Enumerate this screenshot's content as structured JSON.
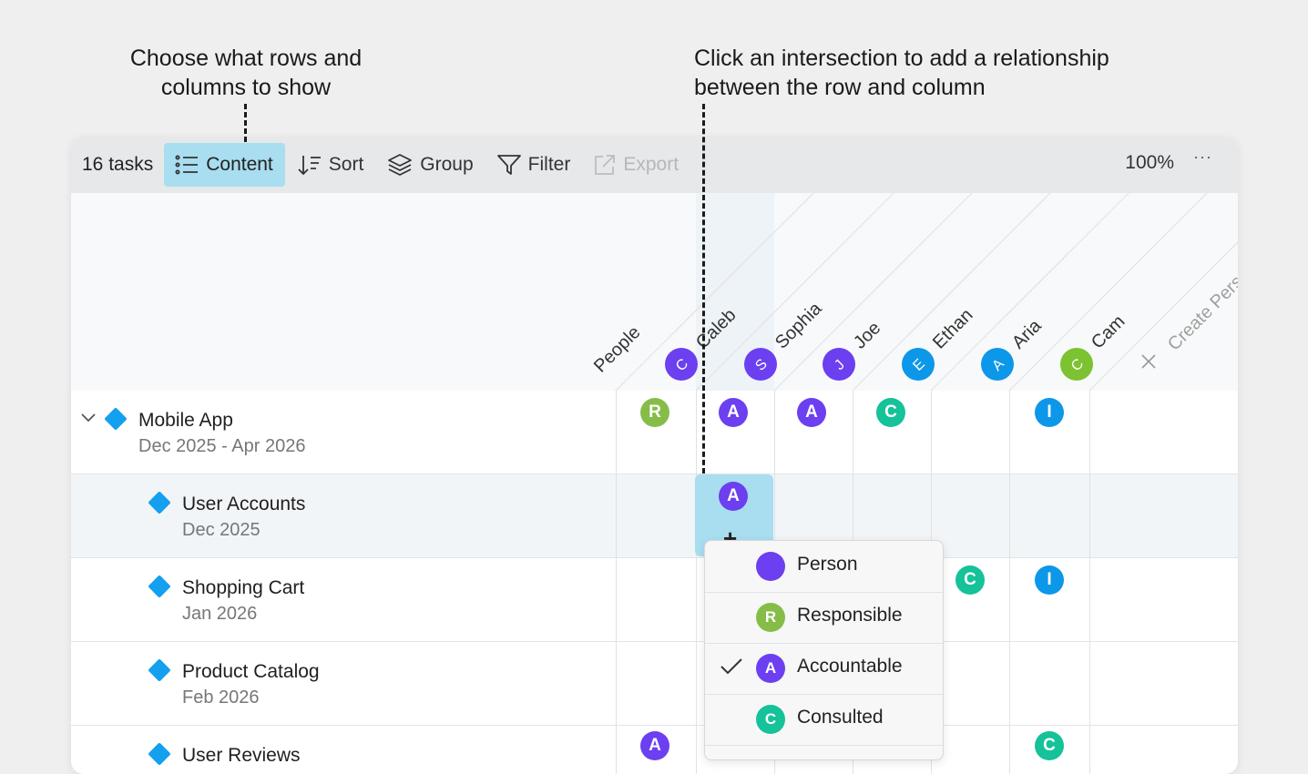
{
  "annotations": {
    "left_line1": "Choose what rows and",
    "left_line2": "columns to show",
    "right_line1": "Click an intersection to add a relationship",
    "right_line2": "between the row and column"
  },
  "toolbar": {
    "task_count": "16 tasks",
    "content_label": "Content",
    "sort_label": "Sort",
    "group_label": "Group",
    "filter_label": "Filter",
    "export_label": "Export",
    "zoom": "100%",
    "more": "···"
  },
  "columns": {
    "people_label": "People",
    "create_label": "Create Person",
    "people": [
      {
        "initial": "C",
        "name": "Caleb"
      },
      {
        "initial": "S",
        "name": "Sophia"
      },
      {
        "initial": "J",
        "name": "Joe"
      },
      {
        "initial": "E",
        "name": "Ethan"
      },
      {
        "initial": "A",
        "name": "Aria"
      },
      {
        "initial": "C",
        "name": "Cam"
      }
    ]
  },
  "rows": [
    {
      "title": "Mobile App",
      "date": "Dec 2025 - Apr 2026",
      "cells": [
        "R",
        "A",
        "A",
        "C",
        "",
        "I"
      ]
    },
    {
      "title": "User Accounts",
      "date": "Dec 2025",
      "cells": [
        "",
        "A",
        "",
        "",
        "",
        ""
      ]
    },
    {
      "title": "Shopping Cart",
      "date": "Jan 2026",
      "cells": [
        "",
        "",
        "",
        "",
        "C",
        "I"
      ]
    },
    {
      "title": "Product Catalog",
      "date": "Feb 2026",
      "cells": [
        "",
        "",
        "",
        "",
        "",
        ""
      ]
    },
    {
      "title": "User Reviews",
      "date": "",
      "cells": [
        "A",
        "",
        "",
        "",
        "",
        "C"
      ]
    }
  ],
  "menu": {
    "items": [
      {
        "label": "Person",
        "badge": "",
        "checked": false
      },
      {
        "label": "Responsible",
        "badge": "R",
        "checked": false
      },
      {
        "label": "Accountable",
        "badge": "A",
        "checked": true
      },
      {
        "label": "Consulted",
        "badge": "C",
        "checked": false
      }
    ]
  },
  "colors": {
    "responsible": "#86bd49",
    "accountable": "#6c3ff0",
    "consulted": "#15c29a",
    "informed": "#0d97e8",
    "person_blue": "#0d97e8",
    "person_purple": "#6c3ff0",
    "person_green": "#7cc231",
    "selection": "#a9ddf0",
    "milestone": "#14a0ee"
  }
}
